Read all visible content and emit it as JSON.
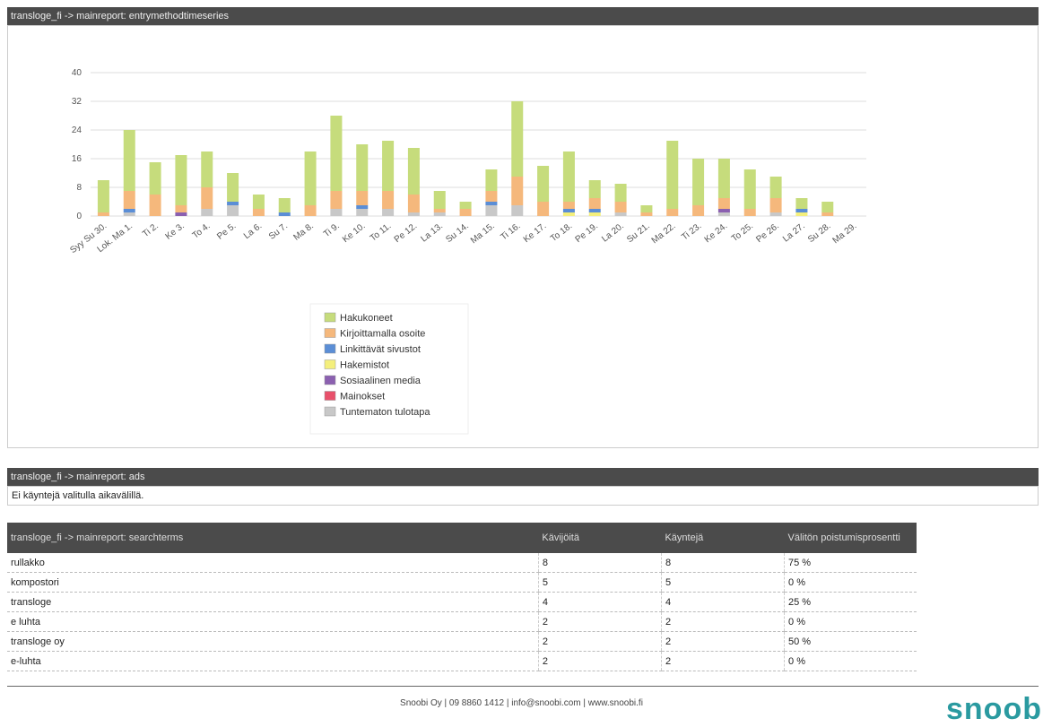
{
  "chart_section": {
    "title": "transloge_fi -> mainreport: entrymethodtimeseries"
  },
  "chart_data": {
    "type": "stacked_bar",
    "categories": [
      "Syy Su 30.",
      "Lok. Ma 1.",
      "Ti 2.",
      "Ke 3.",
      "To 4.",
      "Pe 5.",
      "La 6.",
      "Su 7.",
      "Ma 8.",
      "Ti 9.",
      "Ke 10.",
      "To 11.",
      "Pe 12.",
      "La 13.",
      "Su 14.",
      "Ma 15.",
      "Ti 16.",
      "Ke 17.",
      "To 18.",
      "Pe 19.",
      "La 20.",
      "Su 21.",
      "Ma 22.",
      "Ti 23.",
      "Ke 24.",
      "To 25.",
      "Pe 26.",
      "La 27.",
      "Su 28.",
      "Ma 29."
    ],
    "ylim": [
      0,
      40
    ],
    "yticks": [
      0,
      8,
      16,
      24,
      32,
      40
    ],
    "grid": true,
    "series": [
      {
        "name": "Hakukoneet",
        "color": "#c6dc7c",
        "values": [
          9,
          17,
          9,
          14,
          10,
          8,
          4,
          4,
          15,
          21,
          13,
          14,
          13,
          5,
          2,
          6,
          21,
          10,
          14,
          5,
          5,
          2,
          19,
          13,
          11,
          11,
          6,
          3,
          3,
          0
        ]
      },
      {
        "name": "Kirjoittamalla osoite",
        "color": "#f5b87c",
        "values": [
          1,
          5,
          6,
          2,
          6,
          0,
          2,
          0,
          3,
          5,
          4,
          5,
          5,
          1,
          2,
          3,
          8,
          4,
          2,
          3,
          3,
          1,
          2,
          3,
          3,
          2,
          4,
          0,
          1,
          0
        ]
      },
      {
        "name": "Linkittävät sivustot",
        "color": "#5b8ed6",
        "values": [
          0,
          1,
          0,
          0,
          0,
          1,
          0,
          1,
          0,
          0,
          1,
          0,
          0,
          0,
          0,
          1,
          0,
          0,
          1,
          1,
          0,
          0,
          0,
          0,
          0,
          0,
          0,
          1,
          0,
          0
        ]
      },
      {
        "name": "Hakemistot",
        "color": "#f4ef7c",
        "values": [
          0,
          0,
          0,
          0,
          0,
          0,
          0,
          0,
          0,
          0,
          0,
          0,
          0,
          0,
          0,
          0,
          0,
          0,
          1,
          1,
          0,
          0,
          0,
          0,
          0,
          0,
          0,
          1,
          0,
          0
        ]
      },
      {
        "name": "Sosiaalinen media",
        "color": "#8b60b0",
        "values": [
          0,
          0,
          0,
          1,
          0,
          0,
          0,
          0,
          0,
          0,
          0,
          0,
          0,
          0,
          0,
          0,
          0,
          0,
          0,
          0,
          0,
          0,
          0,
          0,
          1,
          0,
          0,
          0,
          0,
          0
        ]
      },
      {
        "name": "Mainokset",
        "color": "#e8506a",
        "values": [
          0,
          0,
          0,
          0,
          0,
          0,
          0,
          0,
          0,
          0,
          0,
          0,
          0,
          0,
          0,
          0,
          0,
          0,
          0,
          0,
          0,
          0,
          0,
          0,
          0,
          0,
          0,
          0,
          0,
          0
        ]
      },
      {
        "name": "Tuntematon tulotapa",
        "color": "#c8c8c8",
        "values": [
          0,
          1,
          0,
          0,
          2,
          3,
          0,
          0,
          0,
          2,
          2,
          2,
          1,
          1,
          0,
          3,
          3,
          0,
          0,
          0,
          1,
          0,
          0,
          0,
          1,
          0,
          1,
          0,
          0,
          0
        ]
      }
    ]
  },
  "ads": {
    "title": "transloge_fi -> mainreport: ads",
    "message": "Ei käyntejä valitulla aikavälillä."
  },
  "searchterms": {
    "title": "transloge_fi -> mainreport: searchterms",
    "columns": [
      "Kävijöitä",
      "Käyntejä",
      "Välitön poistumisprosentti"
    ],
    "rows": [
      [
        "rullakko",
        8,
        8,
        "75 %"
      ],
      [
        "kompostori",
        5,
        5,
        "0 %"
      ],
      [
        "transloge",
        4,
        4,
        "25 %"
      ],
      [
        "e luhta",
        2,
        2,
        "0 %"
      ],
      [
        "transloge oy",
        2,
        2,
        "50 %"
      ],
      [
        "e-luhta",
        2,
        2,
        "0 %"
      ]
    ]
  },
  "footer": {
    "text": "Snoobi Oy | 09 8860 1412 | info@snoobi.com | www.snoobi.fi",
    "logo": "snoobi"
  }
}
